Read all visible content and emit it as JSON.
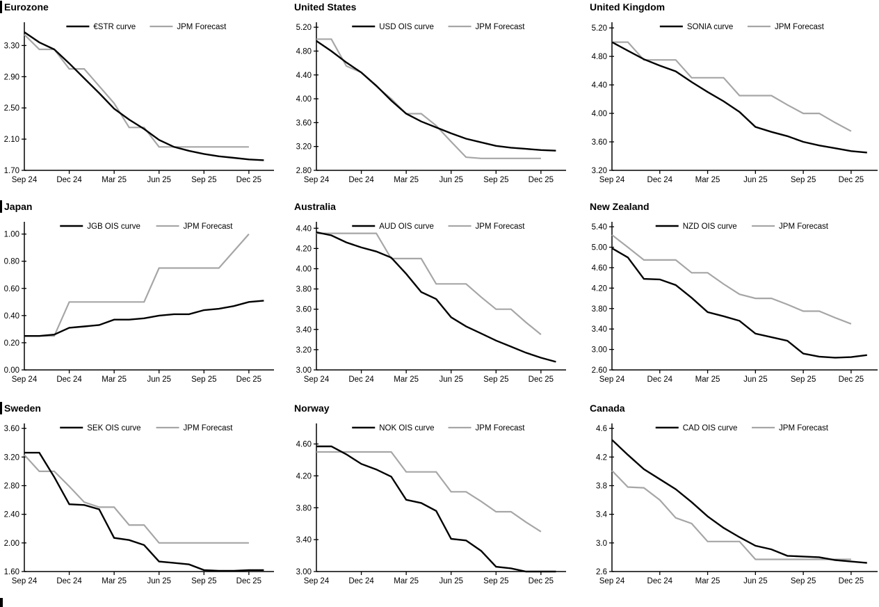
{
  "figure": {
    "description": "Policy rate OIS curves vs JPM forecasts, nine regions",
    "background": "#ffffff",
    "curve_color": "#000000",
    "forecast_color": "#a6a6a6"
  },
  "x_axis": {
    "tick_labels": [
      "Sep 24",
      "Dec 24",
      "Mar 25",
      "Jun 25",
      "Sep 25",
      "Dec 25"
    ],
    "tick_month_indices": [
      0,
      3,
      6,
      9,
      12,
      15
    ],
    "months_span": 16.4
  },
  "chart_data": [
    {
      "type": "line",
      "title": "Eurozone",
      "section_bar": true,
      "legend_entries": [
        "€STR curve",
        "JPM Forecast"
      ],
      "x_tick_labels": [
        "Sep 24",
        "Dec 24",
        "Mar 25",
        "Jun 25",
        "Sep 25",
        "Dec 25"
      ],
      "y_ticks": [
        "1.70",
        "2.10",
        "2.50",
        "2.90",
        "3.30"
      ],
      "y_tick_values": [
        1.7,
        2.1,
        2.5,
        2.9,
        3.3
      ],
      "ylim": [
        1.7,
        3.58
      ],
      "series": [
        {
          "name": "€STR curve",
          "color": "#000000",
          "values": [
            3.47,
            3.34,
            3.25,
            3.07,
            2.88,
            2.69,
            2.49,
            2.35,
            2.23,
            2.09,
            2.0,
            1.95,
            1.91,
            1.88,
            1.86,
            1.84,
            1.83
          ]
        },
        {
          "name": "JPM Forecast",
          "color": "#a6a6a6",
          "values": [
            3.44,
            3.25,
            3.25,
            3.0,
            3.0,
            2.78,
            2.56,
            2.25,
            2.25,
            2.0,
            2.0,
            2.0,
            2.0,
            2.0,
            2.0,
            2.0
          ]
        }
      ]
    },
    {
      "type": "line",
      "title": "United States",
      "section_bar": false,
      "legend_entries": [
        "USD OIS curve",
        "JPM Forecast"
      ],
      "x_tick_labels": [
        "Sep 24",
        "Dec 24",
        "Mar 25",
        "Jun 25",
        "Sep 25",
        "Dec 25"
      ],
      "y_ticks": [
        "2.80",
        "3.20",
        "3.60",
        "4.00",
        "4.40",
        "4.80",
        "5.20"
      ],
      "y_tick_values": [
        2.8,
        3.2,
        3.6,
        4.0,
        4.4,
        4.8,
        5.2
      ],
      "ylim": [
        2.8,
        5.26
      ],
      "series": [
        {
          "name": "USD OIS curve",
          "color": "#000000",
          "values": [
            4.97,
            4.8,
            4.61,
            4.44,
            4.22,
            3.97,
            3.75,
            3.62,
            3.52,
            3.42,
            3.33,
            3.27,
            3.21,
            3.18,
            3.16,
            3.14,
            3.13
          ]
        },
        {
          "name": "JPM Forecast",
          "color": "#a6a6a6",
          "values": [
            5.0,
            5.0,
            4.55,
            4.44,
            4.21,
            4.0,
            3.75,
            3.75,
            3.55,
            3.28,
            3.02,
            3.0,
            3.0,
            3.0,
            3.0,
            3.0
          ]
        }
      ]
    },
    {
      "type": "line",
      "title": "United Kingdom",
      "section_bar": false,
      "legend_entries": [
        "SONIA curve",
        "JPM Forecast"
      ],
      "x_tick_labels": [
        "Sep 24",
        "Dec 24",
        "Mar 25",
        "Jun 25",
        "Sep 25",
        "Dec 25"
      ],
      "y_ticks": [
        "3.20",
        "3.60",
        "4.00",
        "4.40",
        "4.80",
        "5.20"
      ],
      "y_tick_values": [
        3.2,
        3.6,
        4.0,
        4.4,
        4.8,
        5.2
      ],
      "ylim": [
        3.2,
        5.26
      ],
      "series": [
        {
          "name": "SONIA curve",
          "color": "#000000",
          "values": [
            5.0,
            4.88,
            4.76,
            4.67,
            4.59,
            4.44,
            4.3,
            4.17,
            4.02,
            3.81,
            3.74,
            3.68,
            3.6,
            3.55,
            3.51,
            3.47,
            3.45
          ]
        },
        {
          "name": "JPM Forecast",
          "color": "#a6a6a6",
          "values": [
            5.0,
            5.0,
            4.75,
            4.75,
            4.75,
            4.5,
            4.5,
            4.5,
            4.25,
            4.25,
            4.25,
            4.12,
            4.0,
            4.0,
            3.87,
            3.75
          ]
        }
      ]
    },
    {
      "type": "line",
      "title": "Japan",
      "section_bar": true,
      "legend_entries": [
        "JGB OIS curve",
        "JPM Forecast"
      ],
      "x_tick_labels": [
        "Sep 24",
        "Dec 24",
        "Mar 25",
        "Jun 25",
        "Sep 25",
        "Dec 25"
      ],
      "y_ticks": [
        "0.00",
        "0.20",
        "0.40",
        "0.60",
        "0.80",
        "1.00"
      ],
      "y_tick_values": [
        0.0,
        0.2,
        0.4,
        0.6,
        0.8,
        1.0
      ],
      "ylim": [
        0.0,
        1.08
      ],
      "series": [
        {
          "name": "JGB OIS curve",
          "color": "#000000",
          "values": [
            0.25,
            0.25,
            0.26,
            0.31,
            0.32,
            0.33,
            0.37,
            0.37,
            0.38,
            0.4,
            0.41,
            0.41,
            0.44,
            0.45,
            0.47,
            0.5,
            0.51
          ]
        },
        {
          "name": "JPM Forecast",
          "color": "#a6a6a6",
          "values": [
            0.25,
            0.25,
            0.25,
            0.5,
            0.5,
            0.5,
            0.5,
            0.5,
            0.5,
            0.75,
            0.75,
            0.75,
            0.75,
            0.75,
            0.875,
            1.0
          ]
        }
      ]
    },
    {
      "type": "line",
      "title": "Australia",
      "section_bar": false,
      "legend_entries": [
        "AUD OIS curve",
        "JPM Forecast"
      ],
      "x_tick_labels": [
        "Sep 24",
        "Dec 24",
        "Mar 25",
        "Jun 25",
        "Sep 25",
        "Dec 25"
      ],
      "y_ticks": [
        "3.00",
        "3.20",
        "3.40",
        "3.60",
        "3.80",
        "4.00",
        "4.20",
        "4.40"
      ],
      "y_tick_values": [
        3.0,
        3.2,
        3.4,
        3.6,
        3.8,
        4.0,
        4.2,
        4.4
      ],
      "ylim": [
        3.0,
        4.45
      ],
      "series": [
        {
          "name": "AUD OIS curve",
          "color": "#000000",
          "values": [
            4.36,
            4.33,
            4.26,
            4.21,
            4.17,
            4.11,
            3.95,
            3.77,
            3.7,
            3.52,
            3.43,
            3.36,
            3.29,
            3.23,
            3.17,
            3.12,
            3.08
          ]
        },
        {
          "name": "JPM Forecast",
          "color": "#a6a6a6",
          "values": [
            4.35,
            4.35,
            4.35,
            4.35,
            4.35,
            4.1,
            4.1,
            4.1,
            3.85,
            3.85,
            3.85,
            3.72,
            3.6,
            3.6,
            3.47,
            3.35
          ]
        }
      ]
    },
    {
      "type": "line",
      "title": "New Zealand",
      "section_bar": false,
      "legend_entries": [
        "NZD OIS curve",
        "JPM Forecast"
      ],
      "x_tick_labels": [
        "Sep 24",
        "Dec 24",
        "Mar 25",
        "Jun 25",
        "Sep 25",
        "Dec 25"
      ],
      "y_ticks": [
        "2.60",
        "3.00",
        "3.40",
        "3.80",
        "4.20",
        "4.60",
        "5.00",
        "5.40"
      ],
      "y_tick_values": [
        2.6,
        3.0,
        3.4,
        3.8,
        4.2,
        4.6,
        5.0,
        5.4
      ],
      "ylim": [
        2.6,
        5.47
      ],
      "series": [
        {
          "name": "NZD OIS curve",
          "color": "#000000",
          "values": [
            4.98,
            4.8,
            4.38,
            4.37,
            4.26,
            4.01,
            3.73,
            3.65,
            3.56,
            3.31,
            3.24,
            3.17,
            2.92,
            2.86,
            2.84,
            2.85,
            2.89
          ]
        },
        {
          "name": "JPM Forecast",
          "color": "#a6a6a6",
          "values": [
            5.24,
            5.0,
            4.75,
            4.75,
            4.75,
            4.5,
            4.5,
            4.28,
            4.08,
            4.0,
            4.0,
            3.88,
            3.75,
            3.75,
            3.62,
            3.5
          ]
        }
      ]
    },
    {
      "type": "line",
      "title": "Sweden",
      "section_bar": true,
      "legend_entries": [
        "SEK OIS curve",
        "JPM Forecast"
      ],
      "x_tick_labels": [
        "Sep 24",
        "Dec 24",
        "Mar 25",
        "Jun 25",
        "Sep 25",
        "Dec 25"
      ],
      "y_ticks": [
        "1.60",
        "2.00",
        "2.40",
        "2.80",
        "3.20",
        "3.60"
      ],
      "y_tick_values": [
        1.6,
        2.0,
        2.4,
        2.8,
        3.2,
        3.6
      ],
      "ylim": [
        1.6,
        3.65
      ],
      "series": [
        {
          "name": "SEK OIS curve",
          "color": "#000000",
          "values": [
            3.26,
            3.26,
            2.92,
            2.54,
            2.53,
            2.47,
            2.07,
            2.04,
            1.97,
            1.74,
            1.72,
            1.7,
            1.62,
            1.61,
            1.61,
            1.62,
            1.62
          ]
        },
        {
          "name": "JPM Forecast",
          "color": "#a6a6a6",
          "values": [
            3.23,
            3.0,
            3.0,
            2.79,
            2.57,
            2.5,
            2.5,
            2.25,
            2.25,
            2.0,
            2.0,
            2.0,
            2.0,
            2.0,
            2.0,
            2.0
          ]
        }
      ]
    },
    {
      "type": "line",
      "title": "Norway",
      "section_bar": false,
      "legend_entries": [
        "NOK OIS curve",
        "JPM Forecast"
      ],
      "x_tick_labels": [
        "Sep 24",
        "Dec 24",
        "Mar 25",
        "Jun 25",
        "Sep 25",
        "Dec 25"
      ],
      "y_ticks": [
        "3.00",
        "3.40",
        "3.80",
        "4.20",
        "4.60"
      ],
      "y_tick_values": [
        3.0,
        3.4,
        3.8,
        4.2,
        4.6
      ],
      "ylim": [
        3.0,
        4.84
      ],
      "series": [
        {
          "name": "NOK OIS curve",
          "color": "#000000",
          "values": [
            4.57,
            4.57,
            4.47,
            4.35,
            4.28,
            4.19,
            3.9,
            3.86,
            3.76,
            3.41,
            3.39,
            3.26,
            3.06,
            3.04,
            3.0,
            3.0,
            3.0
          ]
        },
        {
          "name": "JPM Forecast",
          "color": "#a6a6a6",
          "values": [
            4.5,
            4.5,
            4.5,
            4.5,
            4.5,
            4.5,
            4.25,
            4.25,
            4.25,
            4.0,
            4.0,
            3.88,
            3.75,
            3.75,
            3.62,
            3.5
          ]
        }
      ]
    },
    {
      "type": "line",
      "title": "Canada",
      "section_bar": false,
      "legend_entries": [
        "CAD OIS curve",
        "JPM Forecast"
      ],
      "x_tick_labels": [
        "Sep 24",
        "Dec 24",
        "Mar 25",
        "Jun 25",
        "Sep 25",
        "Dec 25"
      ],
      "y_ticks": [
        "2.6",
        "3.0",
        "3.4",
        "3.8",
        "4.2",
        "4.6"
      ],
      "y_tick_values": [
        2.6,
        3.0,
        3.4,
        3.8,
        4.2,
        4.6
      ],
      "ylim": [
        2.6,
        4.65
      ],
      "series": [
        {
          "name": "CAD OIS curve",
          "color": "#000000",
          "values": [
            4.44,
            4.23,
            4.03,
            3.89,
            3.75,
            3.57,
            3.37,
            3.21,
            3.08,
            2.96,
            2.91,
            2.82,
            2.81,
            2.8,
            2.76,
            2.74,
            2.72
          ]
        },
        {
          "name": "JPM Forecast",
          "color": "#a6a6a6",
          "values": [
            4.01,
            3.78,
            3.77,
            3.6,
            3.35,
            3.27,
            3.02,
            3.02,
            3.02,
            2.77,
            2.77,
            2.77,
            2.77,
            2.77,
            2.77,
            2.77
          ]
        }
      ]
    }
  ]
}
